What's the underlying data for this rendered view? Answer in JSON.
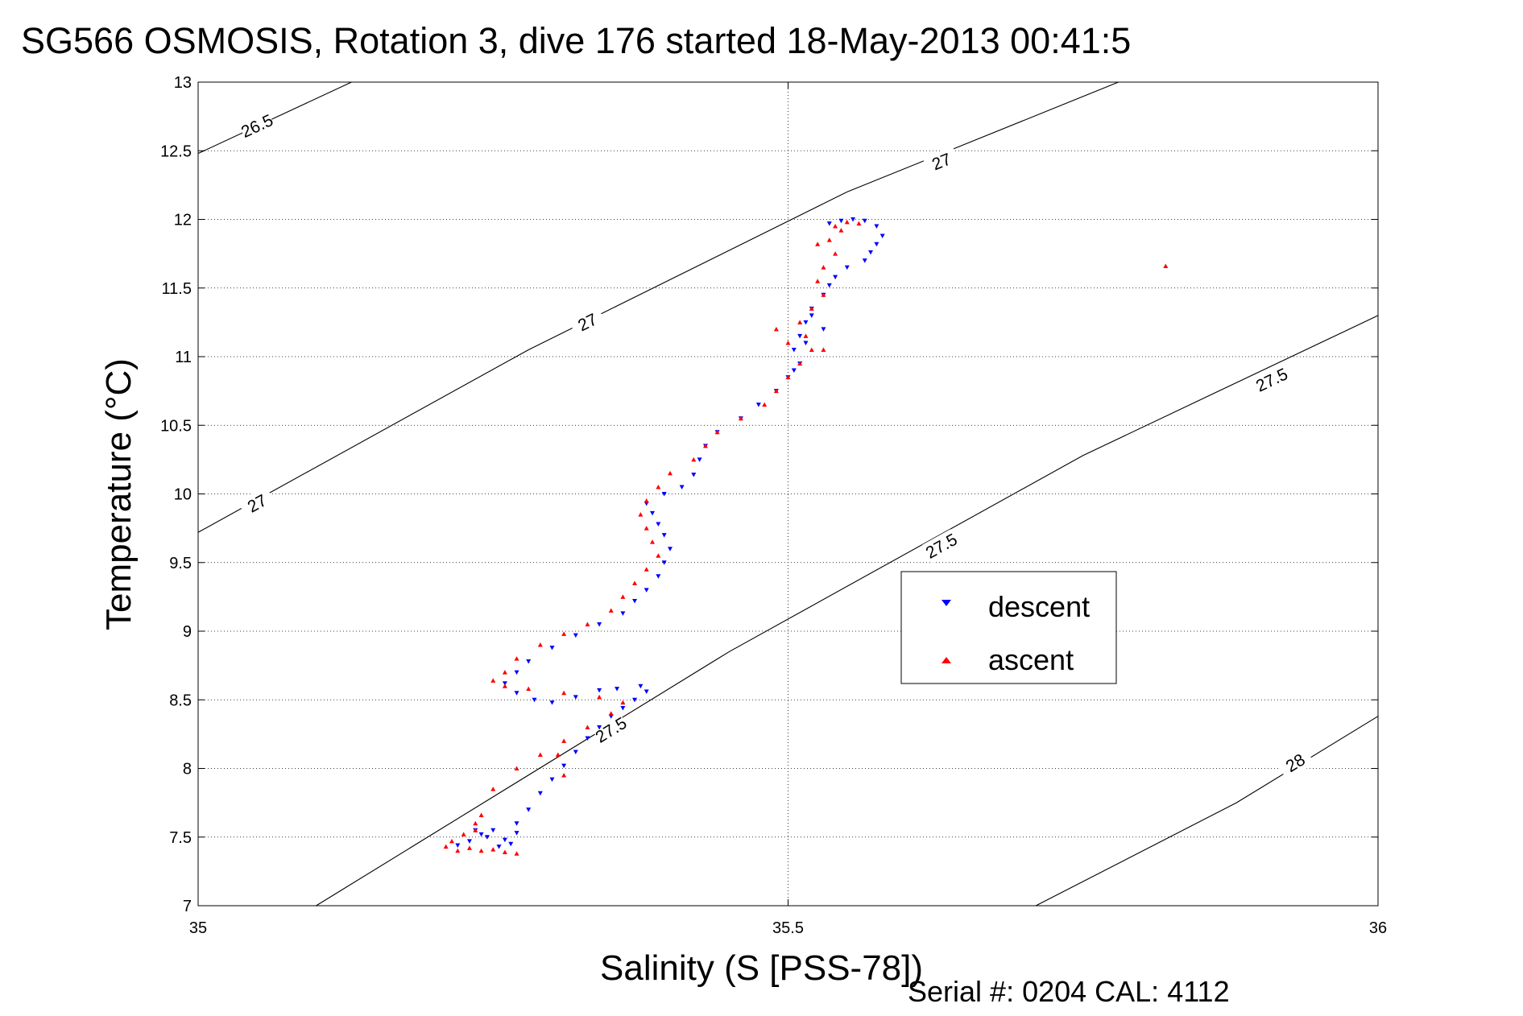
{
  "chart_data": {
    "type": "scatter",
    "title": "SG566 OSMOSIS, Rotation 3, dive 176 started 18-May-2013 00:41:5",
    "xlabel": "Salinity (S [PSS-78])",
    "ylabel": "Temperature (°C)",
    "xlim": [
      35,
      36
    ],
    "ylim": [
      7,
      13
    ],
    "xticks": [
      "35",
      "35.5",
      "36"
    ],
    "yticks": [
      "7",
      "7.5",
      "8",
      "8.5",
      "9",
      "9.5",
      "10",
      "10.5",
      "11",
      "11.5",
      "12",
      "12.5",
      "13"
    ],
    "grid": true,
    "legend_position": "center-right",
    "footer": "Serial #: 0204  CAL: 4112",
    "density_contours": [
      {
        "level": "26.5",
        "points": [
          [
            35.0,
            12.48
          ],
          [
            35.13,
            13.0
          ]
        ],
        "labels": [
          [
            35.05,
            12.68
          ]
        ]
      },
      {
        "level": "27",
        "points": [
          [
            35.0,
            9.72
          ],
          [
            35.28,
            11.05
          ],
          [
            35.55,
            12.2
          ],
          [
            35.78,
            13.0
          ]
        ],
        "labels": [
          [
            35.05,
            9.93
          ],
          [
            35.33,
            11.25
          ],
          [
            35.63,
            12.42
          ]
        ]
      },
      {
        "level": "27.5",
        "points": [
          [
            35.1,
            7.0
          ],
          [
            35.45,
            8.85
          ],
          [
            35.75,
            10.28
          ],
          [
            36.0,
            11.3
          ]
        ],
        "labels": [
          [
            35.35,
            8.28
          ],
          [
            35.63,
            9.62
          ],
          [
            35.91,
            10.83
          ]
        ]
      },
      {
        "level": "28",
        "points": [
          [
            35.71,
            7.0
          ],
          [
            35.88,
            7.75
          ],
          [
            36.0,
            8.38
          ]
        ],
        "labels": [
          [
            35.93,
            8.04
          ]
        ]
      }
    ],
    "series": [
      {
        "name": "descent",
        "color": "#0000ff",
        "marker": "triangle-down",
        "points": [
          [
            35.22,
            7.44
          ],
          [
            35.23,
            7.47
          ],
          [
            35.24,
            7.52
          ],
          [
            35.25,
            7.55
          ],
          [
            35.26,
            7.48
          ],
          [
            35.27,
            7.53
          ],
          [
            35.255,
            7.43
          ],
          [
            35.245,
            7.5
          ],
          [
            35.265,
            7.45
          ],
          [
            35.235,
            7.55
          ],
          [
            35.27,
            7.6
          ],
          [
            35.28,
            7.7
          ],
          [
            35.29,
            7.82
          ],
          [
            35.3,
            7.92
          ],
          [
            35.31,
            8.02
          ],
          [
            35.32,
            8.12
          ],
          [
            35.33,
            8.22
          ],
          [
            35.34,
            8.3
          ],
          [
            35.35,
            8.38
          ],
          [
            35.36,
            8.44
          ],
          [
            35.37,
            8.5
          ],
          [
            35.38,
            8.56
          ],
          [
            35.375,
            8.6
          ],
          [
            35.355,
            8.58
          ],
          [
            35.34,
            8.57
          ],
          [
            35.32,
            8.52
          ],
          [
            35.3,
            8.48
          ],
          [
            35.285,
            8.5
          ],
          [
            35.27,
            8.55
          ],
          [
            35.26,
            8.62
          ],
          [
            35.27,
            8.7
          ],
          [
            35.28,
            8.78
          ],
          [
            35.3,
            8.88
          ],
          [
            35.32,
            8.97
          ],
          [
            35.34,
            9.05
          ],
          [
            35.36,
            9.13
          ],
          [
            35.37,
            9.22
          ],
          [
            35.38,
            9.3
          ],
          [
            35.39,
            9.4
          ],
          [
            35.395,
            9.5
          ],
          [
            35.4,
            9.6
          ],
          [
            35.395,
            9.7
          ],
          [
            35.39,
            9.78
          ],
          [
            35.385,
            9.86
          ],
          [
            35.38,
            9.93
          ],
          [
            35.395,
            10.0
          ],
          [
            35.41,
            10.05
          ],
          [
            35.42,
            10.14
          ],
          [
            35.425,
            10.25
          ],
          [
            35.43,
            10.35
          ],
          [
            35.44,
            10.45
          ],
          [
            35.46,
            10.55
          ],
          [
            35.475,
            10.65
          ],
          [
            35.49,
            10.75
          ],
          [
            35.5,
            10.85
          ],
          [
            35.51,
            10.95
          ],
          [
            35.505,
            11.05
          ],
          [
            35.51,
            11.15
          ],
          [
            35.515,
            11.25
          ],
          [
            35.52,
            11.35
          ],
          [
            35.53,
            11.45
          ],
          [
            35.535,
            11.52
          ],
          [
            35.54,
            11.58
          ],
          [
            35.55,
            11.65
          ],
          [
            35.565,
            11.7
          ],
          [
            35.57,
            11.76
          ],
          [
            35.575,
            11.82
          ],
          [
            35.58,
            11.88
          ],
          [
            35.575,
            11.95
          ],
          [
            35.565,
            11.99
          ],
          [
            35.555,
            12.0
          ],
          [
            35.545,
            11.99
          ],
          [
            35.535,
            11.97
          ],
          [
            35.53,
            11.2
          ],
          [
            35.515,
            11.1
          ],
          [
            35.52,
            11.3
          ],
          [
            35.505,
            10.9
          ]
        ]
      },
      {
        "name": "ascent",
        "color": "#ff0000",
        "marker": "triangle-up",
        "points": [
          [
            35.21,
            7.43
          ],
          [
            35.22,
            7.4
          ],
          [
            35.23,
            7.42
          ],
          [
            35.24,
            7.4
          ],
          [
            35.25,
            7.41
          ],
          [
            35.26,
            7.39
          ],
          [
            35.27,
            7.38
          ],
          [
            35.215,
            7.47
          ],
          [
            35.225,
            7.52
          ],
          [
            35.235,
            7.6
          ],
          [
            35.24,
            7.66
          ],
          [
            35.25,
            7.85
          ],
          [
            35.27,
            8.0
          ],
          [
            35.29,
            8.1
          ],
          [
            35.31,
            8.2
          ],
          [
            35.33,
            8.3
          ],
          [
            35.35,
            8.4
          ],
          [
            35.36,
            8.48
          ],
          [
            35.34,
            8.52
          ],
          [
            35.31,
            8.55
          ],
          [
            35.28,
            8.58
          ],
          [
            35.26,
            8.6
          ],
          [
            35.25,
            8.64
          ],
          [
            35.26,
            8.7
          ],
          [
            35.27,
            8.8
          ],
          [
            35.29,
            8.9
          ],
          [
            35.31,
            8.98
          ],
          [
            35.33,
            9.05
          ],
          [
            35.35,
            9.15
          ],
          [
            35.36,
            9.25
          ],
          [
            35.37,
            9.35
          ],
          [
            35.38,
            9.45
          ],
          [
            35.39,
            9.55
          ],
          [
            35.385,
            9.65
          ],
          [
            35.38,
            9.75
          ],
          [
            35.375,
            9.85
          ],
          [
            35.38,
            9.95
          ],
          [
            35.39,
            10.05
          ],
          [
            35.4,
            10.15
          ],
          [
            35.42,
            10.25
          ],
          [
            35.43,
            10.35
          ],
          [
            35.44,
            10.45
          ],
          [
            35.46,
            10.55
          ],
          [
            35.48,
            10.65
          ],
          [
            35.49,
            10.75
          ],
          [
            35.5,
            10.85
          ],
          [
            35.51,
            10.95
          ],
          [
            35.52,
            11.05
          ],
          [
            35.515,
            11.15
          ],
          [
            35.51,
            11.25
          ],
          [
            35.52,
            11.35
          ],
          [
            35.53,
            11.45
          ],
          [
            35.525,
            11.55
          ],
          [
            35.53,
            11.65
          ],
          [
            35.54,
            11.75
          ],
          [
            35.535,
            11.85
          ],
          [
            35.54,
            11.95
          ],
          [
            35.55,
            11.98
          ],
          [
            35.56,
            11.97
          ],
          [
            35.545,
            11.92
          ],
          [
            35.525,
            11.82
          ],
          [
            35.5,
            11.1
          ],
          [
            35.49,
            11.2
          ],
          [
            35.53,
            11.05
          ],
          [
            35.305,
            8.1
          ],
          [
            35.235,
            7.55
          ],
          [
            35.31,
            7.95
          ],
          [
            35.82,
            11.66
          ]
        ]
      }
    ]
  }
}
